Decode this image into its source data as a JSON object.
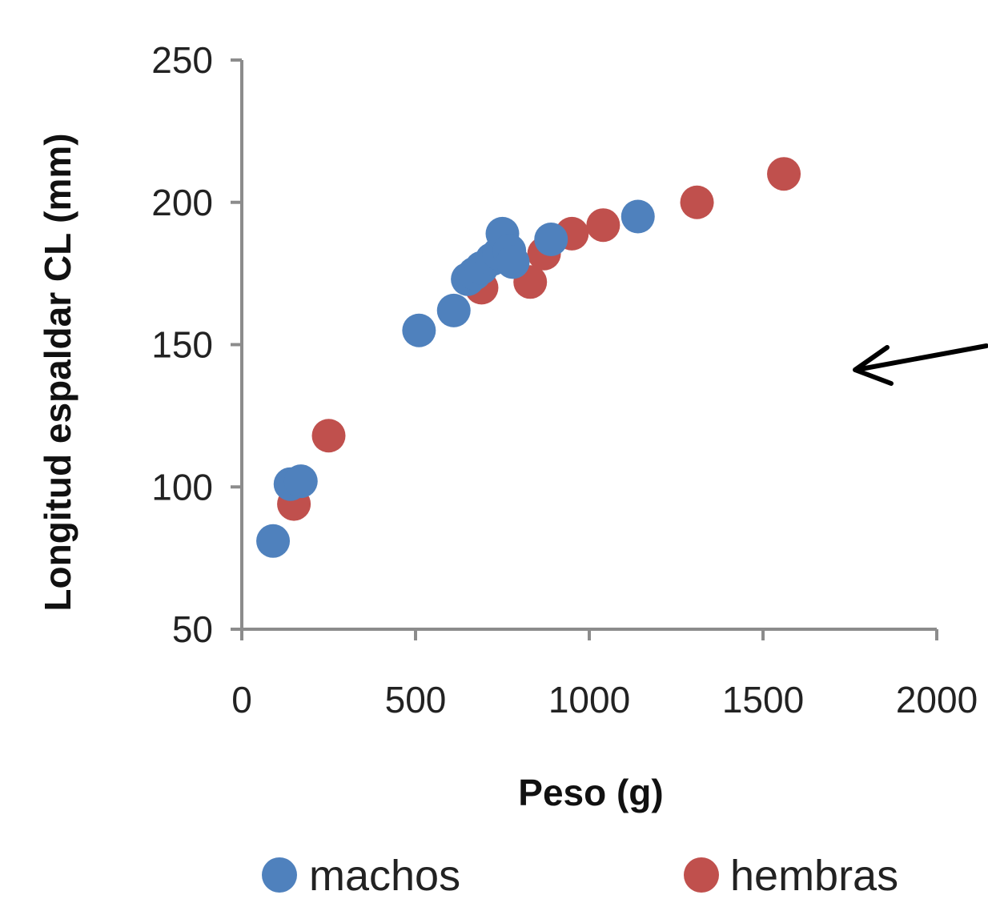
{
  "chart_data": {
    "type": "scatter",
    "xlabel": "Peso (g)",
    "ylabel": "Longitud espaldar CL (mm)",
    "xlim": [
      0,
      2000
    ],
    "ylim": [
      50,
      250
    ],
    "x_ticks": [
      0,
      500,
      1000,
      1500,
      2000
    ],
    "y_ticks": [
      50,
      100,
      150,
      200,
      250
    ],
    "grid": false,
    "legend_position": "bottom",
    "series": [
      {
        "name": "machos",
        "color": "#4f81bd",
        "points": [
          {
            "x": 90,
            "y": 81
          },
          {
            "x": 140,
            "y": 101
          },
          {
            "x": 170,
            "y": 102
          },
          {
            "x": 510,
            "y": 155
          },
          {
            "x": 610,
            "y": 162
          },
          {
            "x": 650,
            "y": 173
          },
          {
            "x": 670,
            "y": 175
          },
          {
            "x": 690,
            "y": 177
          },
          {
            "x": 720,
            "y": 180
          },
          {
            "x": 740,
            "y": 182
          },
          {
            "x": 750,
            "y": 189
          },
          {
            "x": 770,
            "y": 183
          },
          {
            "x": 780,
            "y": 179
          },
          {
            "x": 890,
            "y": 187
          },
          {
            "x": 1140,
            "y": 195
          }
        ]
      },
      {
        "name": "hembras",
        "color": "#c0504d",
        "points": [
          {
            "x": 150,
            "y": 94
          },
          {
            "x": 250,
            "y": 118
          },
          {
            "x": 690,
            "y": 170
          },
          {
            "x": 830,
            "y": 172
          },
          {
            "x": 870,
            "y": 182
          },
          {
            "x": 950,
            "y": 189
          },
          {
            "x": 1040,
            "y": 192
          },
          {
            "x": 1310,
            "y": 200
          },
          {
            "x": 1560,
            "y": 210
          }
        ]
      }
    ],
    "annotations": [
      {
        "type": "arrow",
        "direction": "left"
      }
    ]
  }
}
